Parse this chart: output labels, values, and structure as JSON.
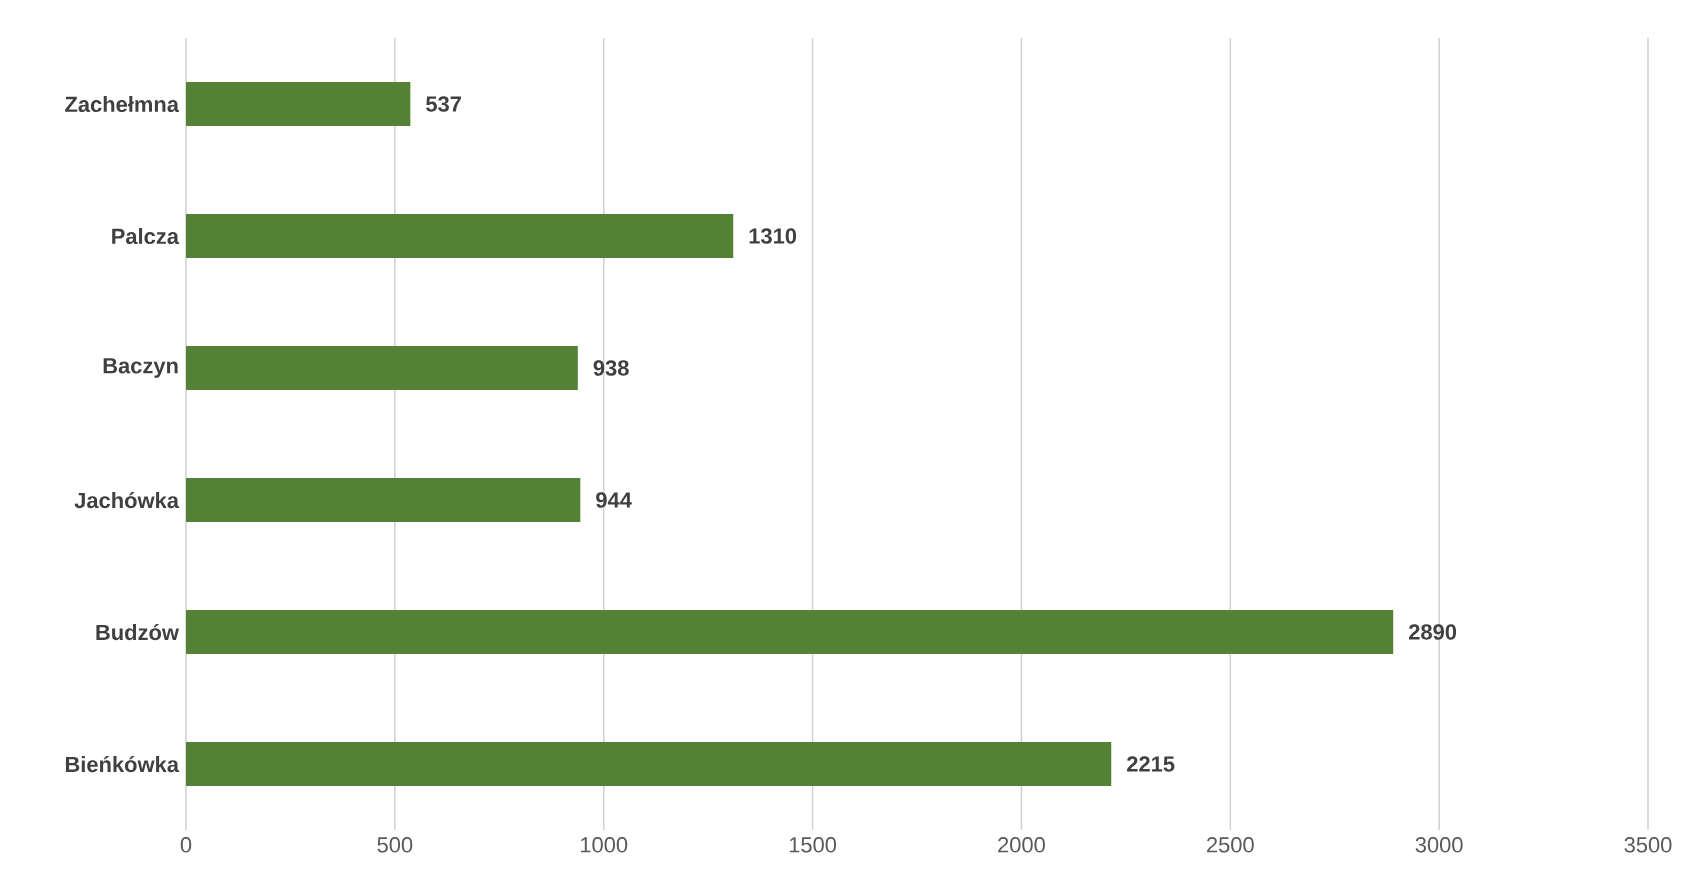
{
  "chart_data": {
    "type": "bar",
    "orientation": "horizontal",
    "categories": [
      "Zachełmna",
      "Palcza",
      "Baczyn",
      "Jachówka",
      "Budzów",
      "Bieńkówka"
    ],
    "values": [
      537,
      1310,
      938,
      944,
      2890,
      2215
    ],
    "color": "#548235",
    "xlim": [
      0,
      3500
    ],
    "xticks": [
      0,
      500,
      1000,
      1500,
      2000,
      2500,
      3000,
      3500
    ],
    "grid": "x",
    "data_labels": true
  }
}
